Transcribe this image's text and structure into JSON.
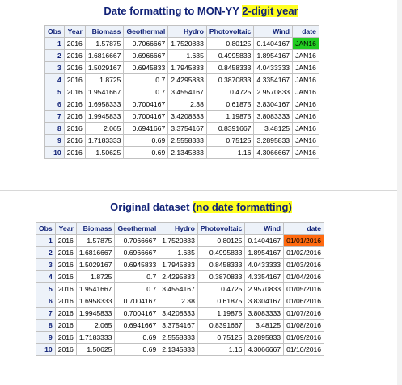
{
  "table1": {
    "title_plain": "Date formatting to MON-YY ",
    "title_highlight": "2-digit year",
    "headers": [
      "Obs",
      "Year",
      "Biomass",
      "Geothermal",
      "Hydro",
      "Photovoltaic",
      "Wind",
      "date"
    ],
    "rows": [
      [
        "1",
        "2016",
        "1.57875",
        "0.7066667",
        "1.7520833",
        "0.80125",
        "0.1404167",
        "JAN16"
      ],
      [
        "2",
        "2016",
        "1.6816667",
        "0.6966667",
        "1.635",
        "0.4995833",
        "1.8954167",
        "JAN16"
      ],
      [
        "3",
        "2016",
        "1.5029167",
        "0.6945833",
        "1.7945833",
        "0.8458333",
        "4.0433333",
        "JAN16"
      ],
      [
        "4",
        "2016",
        "1.8725",
        "0.7",
        "2.4295833",
        "0.3870833",
        "4.3354167",
        "JAN16"
      ],
      [
        "5",
        "2016",
        "1.9541667",
        "0.7",
        "3.4554167",
        "0.4725",
        "2.9570833",
        "JAN16"
      ],
      [
        "6",
        "2016",
        "1.6958333",
        "0.7004167",
        "2.38",
        "0.61875",
        "3.8304167",
        "JAN16"
      ],
      [
        "7",
        "2016",
        "1.9945833",
        "0.7004167",
        "3.4208333",
        "1.19875",
        "3.8083333",
        "JAN16"
      ],
      [
        "8",
        "2016",
        "2.065",
        "0.6941667",
        "3.3754167",
        "0.8391667",
        "3.48125",
        "JAN16"
      ],
      [
        "9",
        "2016",
        "1.7183333",
        "0.69",
        "2.5558333",
        "0.75125",
        "3.2895833",
        "JAN16"
      ],
      [
        "10",
        "2016",
        "1.50625",
        "0.69",
        "2.1345833",
        "1.16",
        "4.3066667",
        "JAN16"
      ]
    ]
  },
  "table2": {
    "title_plain": "Original dataset",
    "title_highlight": "(no date formatting)",
    "headers": [
      "Obs",
      "Year",
      "Biomass",
      "Geothermal",
      "Hydro",
      "Photovoltaic",
      "Wind",
      "date"
    ],
    "rows": [
      [
        "1",
        "2016",
        "1.57875",
        "0.7066667",
        "1.7520833",
        "0.80125",
        "0.1404167",
        "01/01/2016"
      ],
      [
        "2",
        "2016",
        "1.6816667",
        "0.6966667",
        "1.635",
        "0.4995833",
        "1.8954167",
        "01/02/2016"
      ],
      [
        "3",
        "2016",
        "1.5029167",
        "0.6945833",
        "1.7945833",
        "0.8458333",
        "4.0433333",
        "01/03/2016"
      ],
      [
        "4",
        "2016",
        "1.8725",
        "0.7",
        "2.4295833",
        "0.3870833",
        "4.3354167",
        "01/04/2016"
      ],
      [
        "5",
        "2016",
        "1.9541667",
        "0.7",
        "3.4554167",
        "0.4725",
        "2.9570833",
        "01/05/2016"
      ],
      [
        "6",
        "2016",
        "1.6958333",
        "0.7004167",
        "2.38",
        "0.61875",
        "3.8304167",
        "01/06/2016"
      ],
      [
        "7",
        "2016",
        "1.9945833",
        "0.7004167",
        "3.4208333",
        "1.19875",
        "3.8083333",
        "01/07/2016"
      ],
      [
        "8",
        "2016",
        "2.065",
        "0.6941667",
        "3.3754167",
        "0.8391667",
        "3.48125",
        "01/08/2016"
      ],
      [
        "9",
        "2016",
        "1.7183333",
        "0.69",
        "2.5558333",
        "0.75125",
        "3.2895833",
        "01/09/2016"
      ],
      [
        "10",
        "2016",
        "1.50625",
        "0.69",
        "2.1345833",
        "1.16",
        "4.3066667",
        "01/10/2016"
      ]
    ]
  },
  "colors": {
    "title": "#112277",
    "header_bg": "#edf2f9",
    "highlight_yellow": "#ffff22",
    "highlight_green": "#22cc22",
    "highlight_orange": "#ff6a10"
  }
}
